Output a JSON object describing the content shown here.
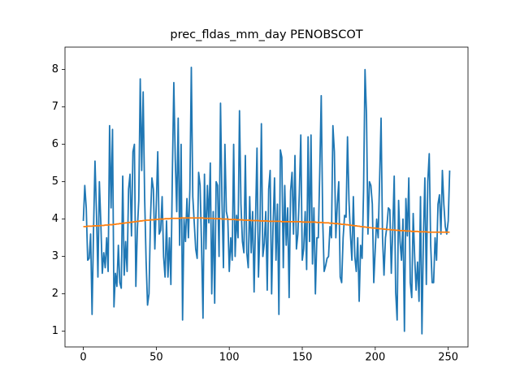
{
  "chart_data": {
    "type": "line",
    "title": "prec_fldas_mm_day PENOBSCOT",
    "xlim": [
      -12.55,
      263.55
    ],
    "xticks": [
      0,
      50,
      100,
      150,
      200,
      250
    ],
    "ylim": [
      0.58,
      8.6
    ],
    "yticks": [
      1,
      2,
      3,
      4,
      5,
      6,
      7,
      8
    ],
    "x": [
      0,
      1,
      2,
      3,
      4,
      5,
      6,
      7,
      8,
      9,
      10,
      11,
      12,
      13,
      14,
      15,
      16,
      17,
      18,
      19,
      20,
      21,
      22,
      23,
      24,
      25,
      26,
      27,
      28,
      29,
      30,
      31,
      32,
      33,
      34,
      35,
      36,
      37,
      38,
      39,
      40,
      41,
      42,
      43,
      44,
      45,
      46,
      47,
      48,
      49,
      50,
      51,
      52,
      53,
      54,
      55,
      56,
      57,
      58,
      59,
      60,
      61,
      62,
      63,
      64,
      65,
      66,
      67,
      68,
      69,
      70,
      71,
      72,
      73,
      74,
      75,
      76,
      77,
      78,
      79,
      80,
      81,
      82,
      83,
      84,
      85,
      86,
      87,
      88,
      89,
      90,
      91,
      92,
      93,
      94,
      95,
      96,
      97,
      98,
      99,
      100,
      101,
      102,
      103,
      104,
      105,
      106,
      107,
      108,
      109,
      110,
      111,
      112,
      113,
      114,
      115,
      116,
      117,
      118,
      119,
      120,
      121,
      122,
      123,
      124,
      125,
      126,
      127,
      128,
      129,
      130,
      131,
      132,
      133,
      134,
      135,
      136,
      137,
      138,
      139,
      140,
      141,
      142,
      143,
      144,
      145,
      146,
      147,
      148,
      149,
      150,
      151,
      152,
      153,
      154,
      155,
      156,
      157,
      158,
      159,
      160,
      161,
      162,
      163,
      164,
      165,
      166,
      167,
      168,
      169,
      170,
      171,
      172,
      173,
      174,
      175,
      176,
      177,
      178,
      179,
      180,
      181,
      182,
      183,
      184,
      185,
      186,
      187,
      188,
      189,
      190,
      191,
      192,
      193,
      194,
      195,
      196,
      197,
      198,
      199,
      200,
      201,
      202,
      203,
      204,
      205,
      206,
      207,
      208,
      209,
      210,
      211,
      212,
      213,
      214,
      215,
      216,
      217,
      218,
      219,
      220,
      221,
      222,
      223,
      224,
      225,
      226,
      227,
      228,
      229,
      230,
      231,
      232,
      233,
      234,
      235,
      236,
      237,
      238,
      239,
      240,
      241,
      242,
      243,
      244,
      245,
      246,
      247,
      248,
      249,
      250,
      251
    ],
    "series": [
      {
        "color": "#1f77b4",
        "values": [
          3.95,
          4.9,
          4.3,
          2.9,
          2.95,
          3.6,
          1.45,
          3.7,
          5.55,
          4.2,
          2.45,
          5.0,
          3.9,
          2.55,
          3.1,
          2.7,
          3.5,
          2.6,
          6.5,
          4.3,
          6.4,
          1.65,
          2.55,
          2.2,
          3.3,
          2.3,
          2.15,
          5.15,
          2.5,
          3.4,
          2.6,
          4.8,
          5.2,
          3.55,
          5.8,
          6.0,
          2.2,
          3.7,
          4.5,
          7.75,
          5.3,
          7.4,
          4.6,
          2.9,
          1.7,
          2.0,
          4.0,
          5.1,
          4.8,
          3.2,
          4.4,
          5.8,
          3.6,
          3.7,
          4.6,
          3.0,
          2.45,
          3.95,
          2.45,
          3.5,
          2.25,
          5.2,
          7.65,
          5.6,
          4.2,
          6.7,
          3.3,
          6.0,
          1.3,
          4.0,
          3.4,
          4.55,
          3.5,
          4.8,
          8.06,
          4.6,
          3.9,
          3.2,
          2.95,
          5.25,
          4.9,
          3.3,
          1.35,
          5.2,
          3.2,
          4.9,
          3.9,
          5.5,
          2.0,
          4.2,
          1.75,
          5.0,
          4.9,
          3.0,
          7.1,
          4.5,
          2.7,
          6.0,
          4.2,
          4.0,
          2.6,
          3.5,
          2.9,
          6.0,
          3.0,
          4.1,
          3.5,
          6.9,
          4.4,
          3.4,
          3.1,
          5.7,
          3.1,
          2.7,
          4.6,
          3.1,
          4.2,
          2.05,
          4.0,
          5.9,
          2.45,
          3.7,
          6.55,
          3.0,
          3.35,
          4.2,
          2.1,
          4.8,
          5.3,
          2.0,
          3.8,
          5.1,
          2.9,
          4.4,
          1.45,
          5.85,
          5.65,
          2.7,
          4.9,
          3.3,
          4.3,
          1.9,
          4.75,
          5.25,
          3.6,
          5.7,
          3.2,
          3.6,
          4.7,
          6.25,
          2.9,
          3.2,
          4.2,
          2.65,
          6.2,
          3.4,
          6.25,
          2.8,
          4.3,
          2.0,
          3.5,
          3.5,
          5.3,
          7.3,
          4.0,
          2.6,
          2.75,
          2.95,
          3.0,
          3.8,
          3.5,
          6.5,
          5.8,
          3.5,
          4.4,
          5.0,
          2.45,
          2.3,
          3.5,
          4.1,
          4.05,
          6.2,
          4.5,
          3.6,
          2.9,
          4.6,
          3.0,
          2.6,
          3.5,
          1.8,
          3.3,
          2.95,
          4.75,
          8.0,
          6.8,
          3.6,
          5.0,
          4.9,
          4.4,
          2.3,
          3.2,
          4.0,
          3.5,
          5.05,
          6.7,
          3.5,
          2.5,
          3.5,
          3.8,
          4.3,
          4.25,
          2.55,
          3.7,
          5.15,
          2.05,
          1.3,
          4.5,
          3.4,
          2.9,
          4.0,
          1.0,
          4.55,
          3.55,
          5.1,
          2.3,
          1.9,
          4.15,
          3.0,
          2.1,
          2.85,
          1.8,
          4.6,
          0.93,
          3.5,
          5.1,
          2.25,
          5.0,
          5.75,
          3.3,
          2.3,
          2.3,
          3.5,
          2.9,
          4.4,
          4.65,
          3.6,
          5.3,
          4.4,
          3.8,
          3.6,
          3.95,
          5.3
        ]
      },
      {
        "color": "#ff7f0e",
        "values": [
          3.8,
          3.8,
          3.8,
          3.81,
          3.81,
          3.81,
          3.81,
          3.82,
          3.82,
          3.82,
          3.82,
          3.82,
          3.83,
          3.83,
          3.83,
          3.84,
          3.84,
          3.84,
          3.85,
          3.85,
          3.85,
          3.86,
          3.86,
          3.87,
          3.87,
          3.88,
          3.88,
          3.89,
          3.89,
          3.9,
          3.9,
          3.91,
          3.91,
          3.92,
          3.92,
          3.93,
          3.93,
          3.94,
          3.94,
          3.95,
          3.95,
          3.96,
          3.96,
          3.97,
          3.97,
          3.97,
          3.98,
          3.98,
          3.98,
          3.99,
          3.99,
          3.99,
          4.0,
          4.0,
          4.0,
          4.0,
          4.01,
          4.01,
          4.01,
          4.01,
          4.02,
          4.02,
          4.02,
          4.02,
          4.02,
          4.02,
          4.02,
          4.03,
          4.03,
          4.03,
          4.03,
          4.03,
          4.03,
          4.03,
          4.03,
          4.03,
          4.03,
          4.03,
          4.03,
          4.03,
          4.03,
          4.03,
          4.03,
          4.02,
          4.02,
          4.02,
          4.02,
          4.02,
          4.02,
          4.02,
          4.01,
          4.01,
          4.01,
          4.01,
          4.01,
          4.0,
          4.0,
          4.0,
          4.0,
          4.0,
          3.99,
          3.99,
          3.99,
          3.99,
          3.99,
          3.98,
          3.98,
          3.98,
          3.98,
          3.98,
          3.97,
          3.97,
          3.97,
          3.97,
          3.97,
          3.96,
          3.96,
          3.96,
          3.96,
          3.96,
          3.96,
          3.95,
          3.95,
          3.95,
          3.95,
          3.95,
          3.95,
          3.94,
          3.94,
          3.94,
          3.94,
          3.94,
          3.94,
          3.94,
          3.94,
          3.94,
          3.93,
          3.93,
          3.93,
          3.93,
          3.93,
          3.93,
          3.93,
          3.93,
          3.93,
          3.93,
          3.93,
          3.93,
          3.93,
          3.93,
          3.92,
          3.92,
          3.92,
          3.92,
          3.92,
          3.92,
          3.92,
          3.92,
          3.92,
          3.92,
          3.91,
          3.91,
          3.91,
          3.91,
          3.91,
          3.9,
          3.9,
          3.9,
          3.9,
          3.89,
          3.89,
          3.89,
          3.88,
          3.88,
          3.88,
          3.87,
          3.87,
          3.86,
          3.86,
          3.86,
          3.85,
          3.85,
          3.84,
          3.84,
          3.83,
          3.83,
          3.82,
          3.82,
          3.81,
          3.81,
          3.8,
          3.8,
          3.79,
          3.79,
          3.78,
          3.78,
          3.77,
          3.77,
          3.76,
          3.76,
          3.76,
          3.75,
          3.75,
          3.74,
          3.74,
          3.74,
          3.73,
          3.73,
          3.72,
          3.72,
          3.72,
          3.71,
          3.71,
          3.71,
          3.7,
          3.7,
          3.7,
          3.69,
          3.69,
          3.69,
          3.69,
          3.68,
          3.68,
          3.68,
          3.68,
          3.67,
          3.67,
          3.67,
          3.67,
          3.67,
          3.66,
          3.66,
          3.66,
          3.66,
          3.66,
          3.66,
          3.65,
          3.65,
          3.65,
          3.65,
          3.65,
          3.65,
          3.65,
          3.65,
          3.65,
          3.65,
          3.65,
          3.65,
          3.65,
          3.65,
          3.65,
          3.65
        ]
      }
    ]
  }
}
